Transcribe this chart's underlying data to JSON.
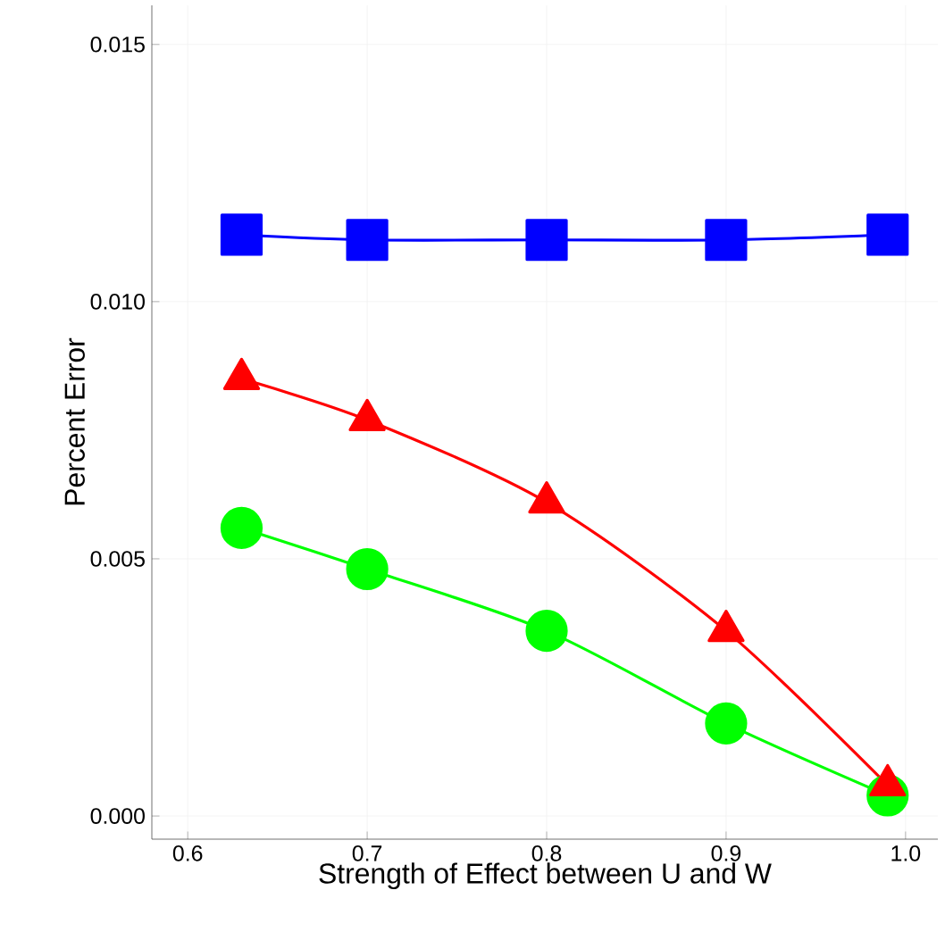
{
  "chart_data": {
    "type": "line",
    "xlabel": "Strength of Effect between U and W",
    "ylabel": "Percent Error",
    "xlim": [
      0.58,
      1.018
    ],
    "ylim": [
      -0.00045,
      0.01576
    ],
    "xticks": [
      {
        "value": 0.6,
        "label": "0.6"
      },
      {
        "value": 0.7,
        "label": "0.7"
      },
      {
        "value": 0.8,
        "label": "0.8"
      },
      {
        "value": 0.9,
        "label": "0.9"
      },
      {
        "value": 1.0,
        "label": "1.0"
      }
    ],
    "yticks": [
      {
        "value": 0.0,
        "label": "0.000"
      },
      {
        "value": 0.005,
        "label": "0.005"
      },
      {
        "value": 0.01,
        "label": "0.010"
      },
      {
        "value": 0.015,
        "label": "0.015"
      }
    ],
    "grid": true,
    "line_style": "solid",
    "x": [
      0.63,
      0.7,
      0.8,
      0.9,
      0.99
    ],
    "series": [
      {
        "color": "#0000ff",
        "marker": "square",
        "values": [
          0.0113,
          0.0112,
          0.0112,
          0.0112,
          0.0113
        ]
      },
      {
        "color": "#00ff00",
        "marker": "circle",
        "values": [
          0.0056,
          0.0048,
          0.0036,
          0.0018,
          0.0004
        ]
      },
      {
        "color": "#ff0000",
        "marker": "triangle",
        "values": [
          0.0085,
          0.0077,
          0.0061,
          0.0036,
          0.0006
        ]
      }
    ]
  }
}
